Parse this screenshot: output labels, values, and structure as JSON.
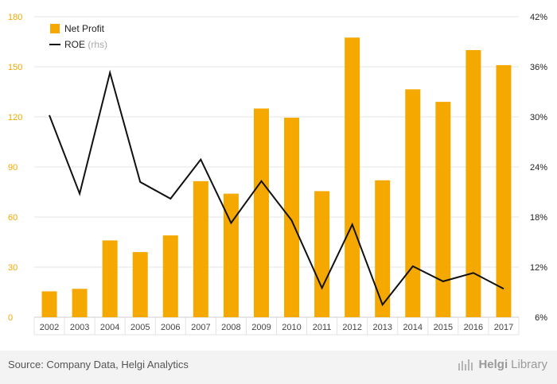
{
  "chart_data": {
    "type": "bar+line",
    "categories": [
      "2002",
      "2003",
      "2004",
      "2005",
      "2006",
      "2007",
      "2008",
      "2009",
      "2010",
      "2011",
      "2012",
      "2013",
      "2014",
      "2015",
      "2016",
      "2017"
    ],
    "series": [
      {
        "name": "Net Profit",
        "type": "bar",
        "axis": "left",
        "values": [
          15.5,
          17,
          46,
          39,
          49,
          81.5,
          74,
          125,
          119.5,
          75.5,
          167.5,
          82,
          136.5,
          129,
          160,
          151
        ]
      },
      {
        "name": "ROE",
        "name_suffix": "(rhs)",
        "type": "line",
        "axis": "right",
        "values": [
          30.2,
          20.8,
          35.3,
          22.2,
          20.2,
          24.9,
          17.3,
          22.3,
          17.6,
          9.5,
          17.1,
          7.5,
          12.1,
          10.3,
          11.3,
          9.4
        ]
      }
    ],
    "y_left": {
      "range": [
        0,
        180
      ],
      "ticks": [
        "0",
        "30",
        "60",
        "90",
        "120",
        "150",
        "180"
      ],
      "tick_values": [
        0,
        30,
        60,
        90,
        120,
        150,
        180
      ]
    },
    "y_right": {
      "range": [
        6,
        42
      ],
      "ticks": [
        "6%",
        "12%",
        "18%",
        "24%",
        "30%",
        "36%",
        "42%"
      ],
      "tick_values": [
        6,
        12,
        18,
        24,
        30,
        36,
        42
      ]
    },
    "colors": {
      "bar": "#f5a800",
      "line": "#111111",
      "left_ticks": "#f5a800",
      "grid": "#e6e6e6"
    },
    "grid": true,
    "legend_position": "top-left"
  },
  "footer": {
    "source": "Source: Company Data, Helgi Analytics",
    "brand_prefix": "Helgi",
    "brand_suffix": "Library"
  }
}
